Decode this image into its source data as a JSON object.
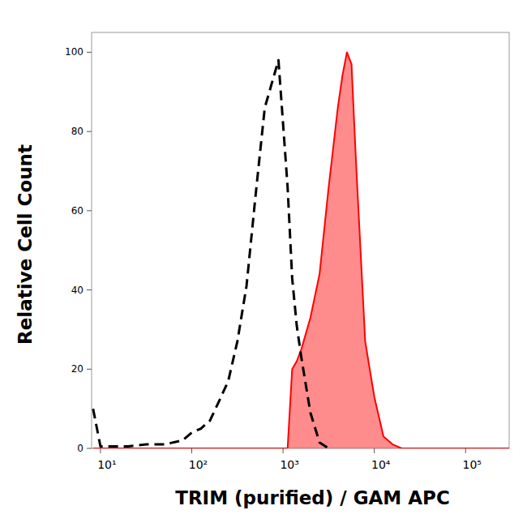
{
  "chart_data": {
    "type": "line",
    "x_label": "TRIM (purified) / GAM APC",
    "y_label": "Relative Cell Count",
    "log": "x",
    "xlim": [
      8,
      300000
    ],
    "ylim": [
      0,
      105
    ],
    "xticks": [
      {
        "value": 10,
        "label": "10¹"
      },
      {
        "value": 100,
        "label": "10²"
      },
      {
        "value": 1000,
        "label": "10³"
      },
      {
        "value": 10000,
        "label": "10⁴"
      },
      {
        "value": 100000,
        "label": "10⁵"
      }
    ],
    "yticks": [
      0,
      20,
      40,
      60,
      80,
      100
    ],
    "x": [
      8.3,
      10,
      20,
      32,
      50,
      79,
      100,
      126,
      158,
      200,
      251,
      316,
      398,
      501,
      562,
      631,
      708,
      794,
      891,
      1000,
      1122,
      1259,
      1413,
      1585,
      1995,
      2512,
      3162,
      3981,
      4467,
      5012,
      5623,
      6310,
      7943,
      10000,
      12589,
      15849,
      19953,
      300000
    ],
    "series": [
      {
        "type": "line",
        "color": "#000000",
        "line_style": "dashed",
        "values": [
          10,
          0.5,
          0.5,
          1,
          1,
          2,
          4,
          5,
          7,
          12,
          17,
          27,
          41,
          64,
          75,
          86,
          90,
          94,
          98,
          82,
          66,
          43,
          31,
          23,
          9,
          1.5,
          0,
          null,
          null,
          null,
          null,
          null,
          null,
          null,
          null,
          null,
          null,
          null
        ]
      },
      {
        "type": "area",
        "color": "#ff0000",
        "line_style": "solid",
        "values": [
          0,
          0,
          0,
          0,
          0,
          0,
          0,
          0,
          0,
          0,
          0,
          0,
          0,
          0,
          0,
          0,
          0,
          0,
          0,
          0,
          0,
          20,
          22,
          25,
          33,
          44,
          66,
          86,
          94,
          100,
          97,
          72,
          27,
          13,
          3,
          1,
          0,
          0
        ]
      }
    ]
  }
}
